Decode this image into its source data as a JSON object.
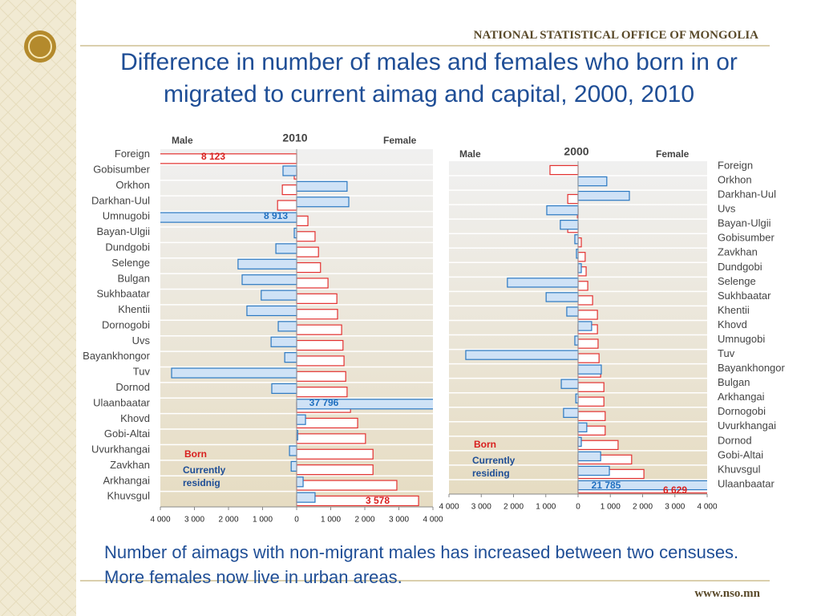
{
  "header": {
    "organization": "NATIONAL STATISTICAL OFFICE OF MONGOLIA",
    "title": "Difference in number of males and females who born in or migrated to current aimag and capital, 2000, 2010"
  },
  "chart_data": [
    {
      "type": "bar",
      "orientation": "horizontal",
      "title": "2010",
      "left_label": "Male",
      "right_label": "Female",
      "categories": [
        "Foreign",
        "Gobisumber",
        "Orkhon",
        "Darkhan-Uul",
        "Umnugobi",
        "Bayan-Ulgii",
        "Dundgobi",
        "Selenge",
        "Bulgan",
        "Sukhbaatar",
        "Khentii",
        "Dornogobi",
        "Uvs",
        "Bayankhongor",
        "Tuv",
        "Dornod",
        "Ulaanbaatar",
        "Khovd",
        "Gobi-Altai",
        "Uvurkhangai",
        "Zavkhan",
        "Arkhangai",
        "Khuvsgul"
      ],
      "series": [
        {
          "name": "Born",
          "color": "#e3302f",
          "values": [
            -8123,
            -70,
            -420,
            -560,
            330,
            540,
            640,
            700,
            920,
            1180,
            1200,
            1320,
            1360,
            1390,
            1440,
            1480,
            1580,
            1790,
            2020,
            2240,
            2240,
            2940,
            3578
          ],
          "value_labels": [
            "8 123",
            null,
            null,
            null,
            null,
            null,
            null,
            null,
            null,
            null,
            null,
            null,
            null,
            null,
            null,
            null,
            null,
            null,
            null,
            null,
            null,
            null,
            "3 578"
          ]
        },
        {
          "name": "Currently residnig",
          "color": "#2a78c2",
          "values": [
            0,
            -400,
            1480,
            1530,
            -8913,
            -70,
            -610,
            -1720,
            -1600,
            -1040,
            -1460,
            -540,
            -750,
            -350,
            -3670,
            -730,
            37796,
            260,
            30,
            -210,
            -160,
            190,
            540
          ],
          "value_labels": [
            null,
            null,
            null,
            null,
            "8 913",
            null,
            null,
            null,
            null,
            null,
            null,
            null,
            null,
            null,
            null,
            null,
            "37 796",
            null,
            null,
            null,
            null,
            null,
            null
          ]
        }
      ],
      "xlim": [
        -4000,
        4000
      ],
      "xticks": [
        {
          "value": -4000,
          "label": "4 000"
        },
        {
          "value": -3000,
          "label": "3 000"
        },
        {
          "value": -2000,
          "label": "2 000"
        },
        {
          "value": -1000,
          "label": "1 000"
        },
        0,
        {
          "value": 1000,
          "label": "1 000"
        },
        {
          "value": 2000,
          "label": "2 000"
        },
        {
          "value": 3000,
          "label": "3 000"
        },
        {
          "value": 4000,
          "label": "4 000"
        }
      ]
    },
    {
      "type": "bar",
      "orientation": "horizontal",
      "title": "2000",
      "left_label": "Male",
      "right_label": "Female",
      "categories": [
        "Foreign",
        "Orkhon",
        "Darkhan-Uul",
        "Uvs",
        "Bayan-Ulgii",
        "Gobisumber",
        "Zavkhan",
        "Dundgobi",
        "Selenge",
        "Sukhbaatar",
        "Khentii",
        "Khovd",
        "Umnugobi",
        "Tuv",
        "Bayankhongor",
        "Bulgan",
        "Arkhangai",
        "Dornogobi",
        "Uvurkhangai",
        "Dornod",
        "Gobi-Altai",
        "Khuvsgul",
        "Ulaanbaatar"
      ],
      "series": [
        {
          "name": "Born",
          "color": "#e3302f",
          "values": [
            -870,
            0,
            -320,
            -20,
            -320,
            100,
            220,
            250,
            300,
            450,
            600,
            600,
            620,
            650,
            700,
            800,
            800,
            840,
            840,
            1240,
            1660,
            2040,
            6629
          ],
          "value_labels": [
            null,
            null,
            null,
            null,
            null,
            null,
            null,
            null,
            null,
            null,
            null,
            null,
            null,
            null,
            null,
            null,
            null,
            null,
            null,
            null,
            null,
            null,
            "6 629"
          ]
        },
        {
          "name": "Currently residing",
          "color": "#2a78c2",
          "values": [
            0,
            890,
            1590,
            -970,
            -550,
            -100,
            -50,
            100,
            -2190,
            -990,
            -350,
            420,
            -100,
            -3480,
            720,
            -520,
            -70,
            -450,
            270,
            100,
            700,
            970,
            21785
          ],
          "value_labels": [
            null,
            null,
            null,
            null,
            null,
            null,
            null,
            null,
            null,
            null,
            null,
            null,
            null,
            null,
            null,
            null,
            null,
            null,
            null,
            null,
            null,
            null,
            "21 785"
          ]
        }
      ],
      "xlim": [
        -4000,
        4000
      ],
      "xticks": [
        {
          "value": -4000,
          "label": "4 000"
        },
        {
          "value": -3000,
          "label": "3 000"
        },
        {
          "value": -2000,
          "label": "2 000"
        },
        {
          "value": -1000,
          "label": "1 000"
        },
        0,
        {
          "value": 1000,
          "label": "1 000"
        },
        {
          "value": 2000,
          "label": "2 000"
        },
        {
          "value": 3000,
          "label": "3 000"
        },
        {
          "value": 4000,
          "label": "4 000"
        }
      ]
    }
  ],
  "footer": {
    "note": "Number of aimags with non-migrant males has increased between two censuses. More females now live in urban areas.",
    "url": "www.nso.mn"
  }
}
